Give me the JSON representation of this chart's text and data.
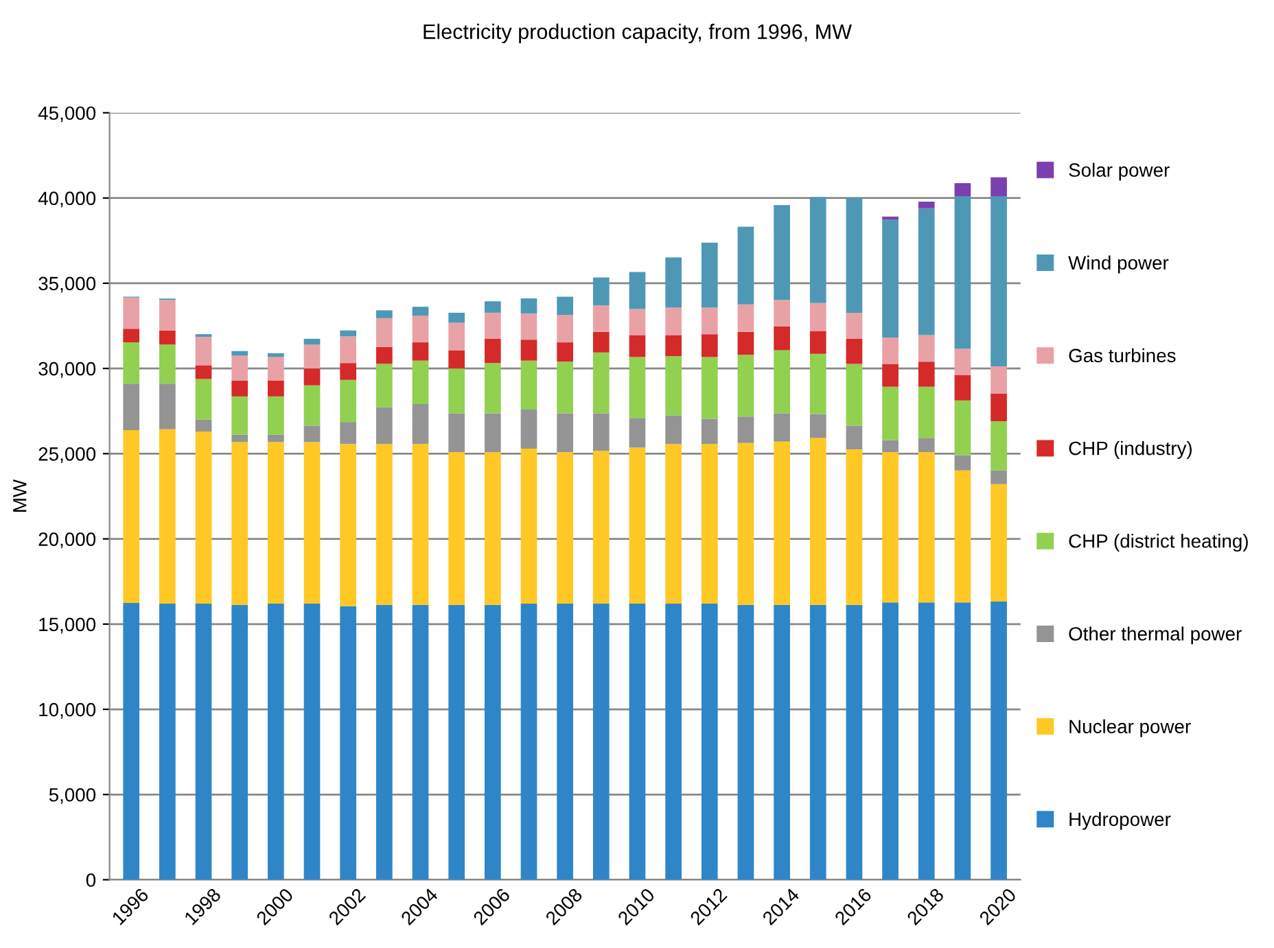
{
  "chart_data": {
    "type": "bar",
    "stacked": true,
    "title": "Electricity production capacity, from 1996, MW",
    "ylabel": "MW",
    "categories": [
      "1996",
      null,
      "1998",
      null,
      "2000",
      null,
      "2002",
      null,
      "2004",
      null,
      "2006",
      null,
      "2008",
      null,
      "2010",
      null,
      "2012",
      null,
      "2014",
      null,
      "2016",
      null,
      "2018",
      null,
      "2020"
    ],
    "ylim": [
      0,
      45000
    ],
    "yticks": [
      0,
      {
        "value": 5000,
        "label": "5,000"
      },
      {
        "value": 10000,
        "label": "10,000"
      },
      {
        "value": 15000,
        "label": "15,000"
      },
      {
        "value": 20000,
        "label": "20,000"
      },
      {
        "value": 25000,
        "label": "25,000"
      },
      {
        "value": 30000,
        "label": "30,000"
      },
      {
        "value": 35000,
        "label": "35,000"
      },
      {
        "value": 40000,
        "label": "40,000"
      },
      {
        "value": 45000,
        "label": "45,000"
      }
    ],
    "grid": "y",
    "legend": "right",
    "series": [
      {
        "name": "Hydropower",
        "color": "#2e86c8",
        "values": [
          16240,
          16200,
          16200,
          16130,
          16200,
          16200,
          16050,
          16130,
          16130,
          16130,
          16130,
          16200,
          16200,
          16200,
          16200,
          16200,
          16200,
          16130,
          16130,
          16130,
          16130,
          16270,
          16270,
          16270,
          16320
        ]
      },
      {
        "name": "Nuclear power",
        "color": "#ffc824",
        "values": [
          10140,
          10230,
          10100,
          9550,
          9480,
          9480,
          9520,
          9440,
          9440,
          8960,
          8960,
          9100,
          8890,
          8970,
          9160,
          9370,
          9370,
          9500,
          9580,
          9790,
          9120,
          8820,
          8820,
          7750,
          6890
        ]
      },
      {
        "name": "Other thermal power",
        "color": "#949494",
        "values": [
          2730,
          2680,
          700,
          430,
          430,
          970,
          1290,
          2150,
          2340,
          2280,
          2280,
          2290,
          2280,
          2200,
          1740,
          1670,
          1480,
          1550,
          1660,
          1400,
          1400,
          700,
          810,
          880,
          810
        ]
      },
      {
        "name": "CHP (district heating)",
        "color": "#92d050",
        "values": [
          2420,
          2290,
          2380,
          2250,
          2250,
          2360,
          2470,
          2550,
          2550,
          2630,
          2950,
          2870,
          3030,
          3570,
          3570,
          3480,
          3620,
          3620,
          3700,
          3540,
          3620,
          3140,
          3030,
          3220,
          2890
        ]
      },
      {
        "name": "CHP (industry)",
        "color": "#d42a2a",
        "values": [
          800,
          830,
          810,
          920,
          920,
          990,
          990,
          990,
          1070,
          1070,
          1420,
          1230,
          1130,
          1210,
          1290,
          1240,
          1340,
          1350,
          1400,
          1340,
          1470,
          1340,
          1470,
          1480,
          1610
        ]
      },
      {
        "name": "Gas turbines",
        "color": "#e8a2a6",
        "values": [
          1830,
          1790,
          1660,
          1470,
          1390,
          1400,
          1560,
          1690,
          1560,
          1610,
          1530,
          1530,
          1610,
          1550,
          1530,
          1610,
          1560,
          1610,
          1550,
          1640,
          1530,
          1550,
          1560,
          1550,
          1610
        ]
      },
      {
        "name": "Wind power",
        "color": "#4e98b5",
        "values": [
          50,
          80,
          160,
          270,
          220,
          340,
          350,
          460,
          530,
          590,
          670,
          890,
          1070,
          1640,
          2170,
          2950,
          3810,
          4560,
          5560,
          6220,
          6740,
          6900,
          7430,
          8960,
          9980
        ]
      },
      {
        "name": "Solar power",
        "color": "#7b3fb0",
        "values": [
          0,
          0,
          0,
          0,
          0,
          0,
          0,
          0,
          0,
          0,
          0,
          0,
          0,
          0,
          0,
          0,
          0,
          0,
          0,
          0,
          0,
          190,
          400,
          760,
          1100
        ]
      }
    ]
  }
}
